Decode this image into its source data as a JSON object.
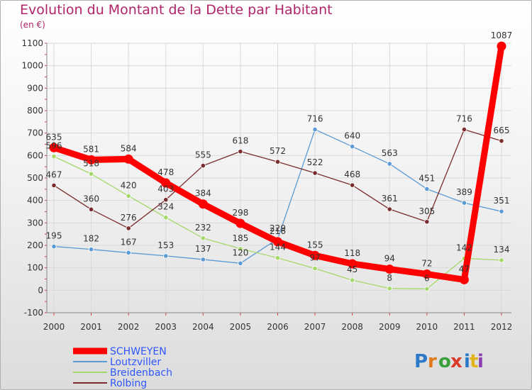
{
  "title": "Evolution du Montant de la Dette par Habitant",
  "subtitle": "(en €)",
  "logo": {
    "text": "Proxiti",
    "letter_colors": [
      "#2b79c8",
      "#e07a1c",
      "#3aa03a",
      "#d93a2a",
      "#2b79c8",
      "#e0b21c",
      "#8a3fb0"
    ]
  },
  "chart_data": {
    "type": "line",
    "x": [
      "2000",
      "2001",
      "2002",
      "2003",
      "2004",
      "2005",
      "2006",
      "2007",
      "2008",
      "2009",
      "2010",
      "2011",
      "2012"
    ],
    "ylim": [
      -100,
      1100
    ],
    "yticks": [
      -100,
      0,
      100,
      200,
      300,
      400,
      500,
      600,
      700,
      800,
      900,
      1000,
      1100
    ],
    "grid": true,
    "legend_position": "bottom-left",
    "series": [
      {
        "name": "SCHWEYEN",
        "color": "#ff0000",
        "highlight": true,
        "values": [
          635,
          581,
          584,
          478,
          384,
          298,
          216,
          155,
          118,
          94,
          72,
          47,
          1087
        ],
        "labels": [
          "635",
          "581",
          "584",
          "478",
          "384",
          "298",
          "216",
          "155",
          "118",
          "94",
          "72",
          "47",
          "1087"
        ]
      },
      {
        "name": "Loutzviller",
        "color": "#5a9bd5",
        "highlight": false,
        "values": [
          195,
          182,
          167,
          153,
          137,
          120,
          229,
          716,
          640,
          563,
          451,
          389,
          351
        ],
        "labels": [
          "195",
          "182",
          "167",
          "153",
          "137",
          "120",
          "229",
          "716",
          "640",
          "563",
          "451",
          "389",
          "351"
        ]
      },
      {
        "name": "Breidenbach",
        "color": "#a5d86a",
        "highlight": false,
        "values": [
          596,
          518,
          420,
          324,
          232,
          185,
          144,
          97,
          45,
          8,
          6,
          142,
          134
        ],
        "labels": [
          "596",
          "518",
          "420",
          "324",
          "232",
          "185",
          "144",
          "97",
          "45",
          "8",
          "6",
          "142",
          "134"
        ]
      },
      {
        "name": "Rolbing",
        "color": "#7b2d2d",
        "highlight": false,
        "values": [
          467,
          360,
          276,
          403,
          555,
          618,
          572,
          522,
          468,
          361,
          305,
          716,
          665
        ],
        "labels": [
          "467",
          "360",
          "276",
          "403",
          "555",
          "618",
          "572",
          "522",
          "468",
          "361",
          "305",
          "716",
          "665"
        ]
      }
    ]
  }
}
